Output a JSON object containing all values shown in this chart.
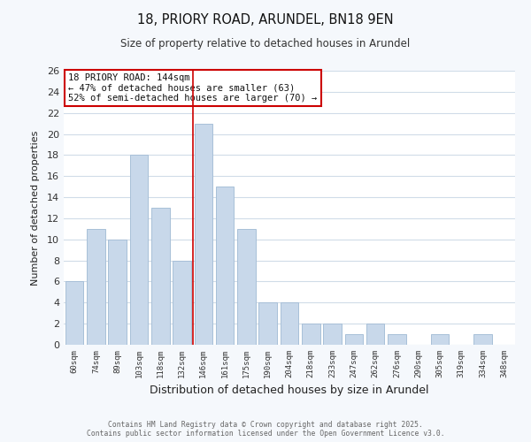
{
  "title": "18, PRIORY ROAD, ARUNDEL, BN18 9EN",
  "subtitle": "Size of property relative to detached houses in Arundel",
  "xlabel": "Distribution of detached houses by size in Arundel",
  "ylabel": "Number of detached properties",
  "bar_color": "#c8d8ea",
  "bar_edge_color": "#a8c0d8",
  "grid_color": "#d0dce8",
  "vline_color": "#cc0000",
  "categories": [
    "60sqm",
    "74sqm",
    "89sqm",
    "103sqm",
    "118sqm",
    "132sqm",
    "146sqm",
    "161sqm",
    "175sqm",
    "190sqm",
    "204sqm",
    "218sqm",
    "233sqm",
    "247sqm",
    "262sqm",
    "276sqm",
    "290sqm",
    "305sqm",
    "319sqm",
    "334sqm",
    "348sqm"
  ],
  "values": [
    6,
    11,
    10,
    18,
    13,
    8,
    21,
    15,
    11,
    4,
    4,
    2,
    2,
    1,
    2,
    1,
    0,
    1,
    0,
    1,
    0
  ],
  "ylim": [
    0,
    26
  ],
  "yticks": [
    0,
    2,
    4,
    6,
    8,
    10,
    12,
    14,
    16,
    18,
    20,
    22,
    24,
    26
  ],
  "annotation_title": "18 PRIORY ROAD: 144sqm",
  "annotation_line1": "← 47% of detached houses are smaller (63)",
  "annotation_line2": "52% of semi-detached houses are larger (70) →",
  "footer1": "Contains HM Land Registry data © Crown copyright and database right 2025.",
  "footer2": "Contains public sector information licensed under the Open Government Licence v3.0.",
  "background_color": "#f5f8fc",
  "plot_bg_color": "#ffffff"
}
